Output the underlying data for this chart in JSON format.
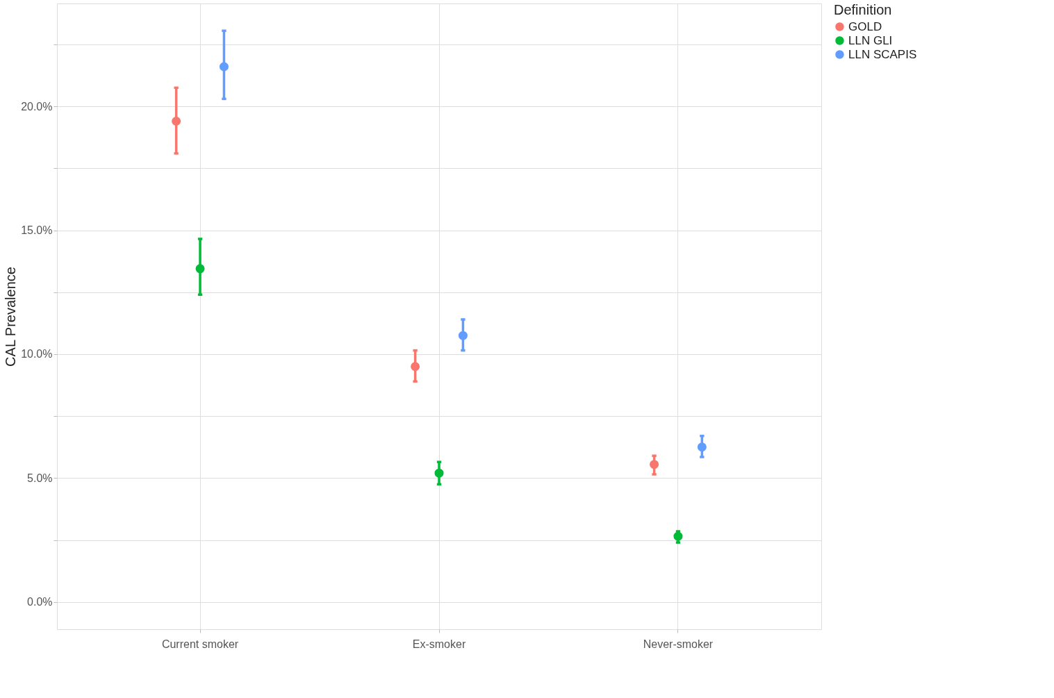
{
  "chart_data": {
    "type": "scatter",
    "ylabel": "CAL Prevalence",
    "legend_title": "Definition",
    "categories": [
      "Current smoker",
      "Ex-smoker",
      "Never-smoker"
    ],
    "series": [
      {
        "name": "GOLD",
        "color": "#f8766d",
        "values": [
          19.4,
          9.5,
          5.55
        ],
        "errors": [
          [
            18.1,
            20.75
          ],
          [
            8.9,
            10.15
          ],
          [
            5.15,
            5.9
          ]
        ]
      },
      {
        "name": "LLN GLI",
        "color": "#00ba38",
        "values": [
          13.45,
          5.2,
          2.65
        ],
        "errors": [
          [
            12.4,
            14.65
          ],
          [
            4.75,
            5.65
          ],
          [
            2.4,
            2.85
          ]
        ]
      },
      {
        "name": "LLN SCAPIS",
        "color": "#619cff",
        "values": [
          21.6,
          10.75,
          6.25
        ],
        "errors": [
          [
            20.3,
            23.05
          ],
          [
            10.15,
            11.4
          ],
          [
            5.85,
            6.7
          ]
        ]
      }
    ],
    "ylim": [
      -1.1,
      24.15
    ],
    "yticks": [
      {
        "value": 0,
        "label": "0.0%"
      },
      {
        "value": 2.5,
        "label": null
      },
      {
        "value": 5,
        "label": "5.0%"
      },
      {
        "value": 7.5,
        "label": null
      },
      {
        "value": 10,
        "label": "10.0%"
      },
      {
        "value": 12.5,
        "label": null
      },
      {
        "value": 15,
        "label": "15.0%"
      },
      {
        "value": 17.5,
        "label": null
      },
      {
        "value": 20,
        "label": "20.0%"
      },
      {
        "value": 22.5,
        "label": null
      }
    ],
    "grid": true,
    "legend": "right",
    "marker": "circle"
  }
}
